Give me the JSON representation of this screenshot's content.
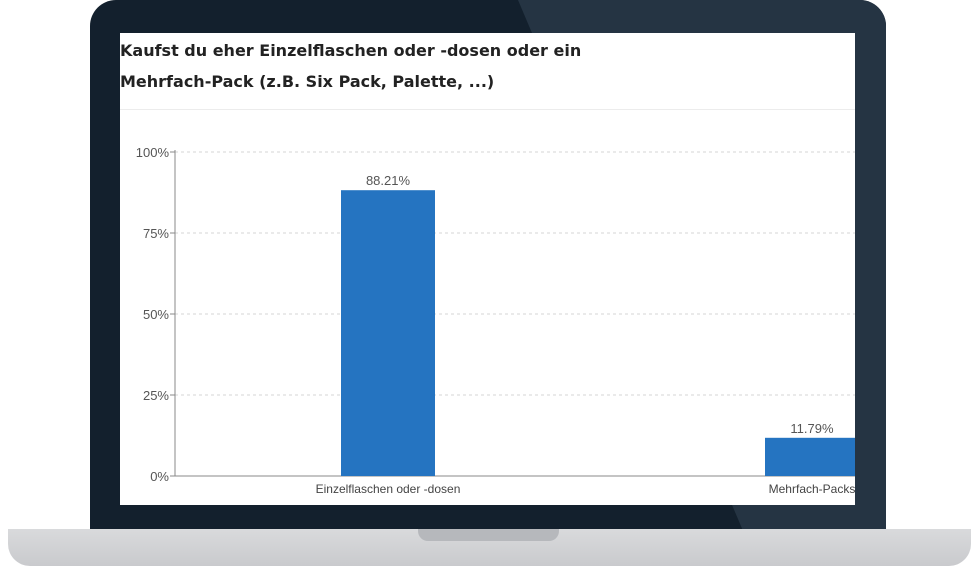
{
  "chart_data": {
    "type": "bar",
    "title_lines": [
      "Kaufst du eher Einzelflaschen oder -dosen oder ein",
      "Mehrfach-Pack (z.B. Six Pack, Palette, ...)"
    ],
    "categories": [
      "Einzelflaschen oder -dosen",
      "Mehrfach-Packs"
    ],
    "values": [
      88.21,
      11.79
    ],
    "data_labels": [
      "88.21%",
      "11.79%"
    ],
    "y_ticks": [
      0,
      25,
      50,
      75,
      100
    ],
    "y_tick_labels": [
      "0%",
      "25%",
      "50%",
      "75%",
      "100%"
    ],
    "ylim": [
      0,
      100
    ],
    "grid": true,
    "bar_color": "#2574c1"
  }
}
